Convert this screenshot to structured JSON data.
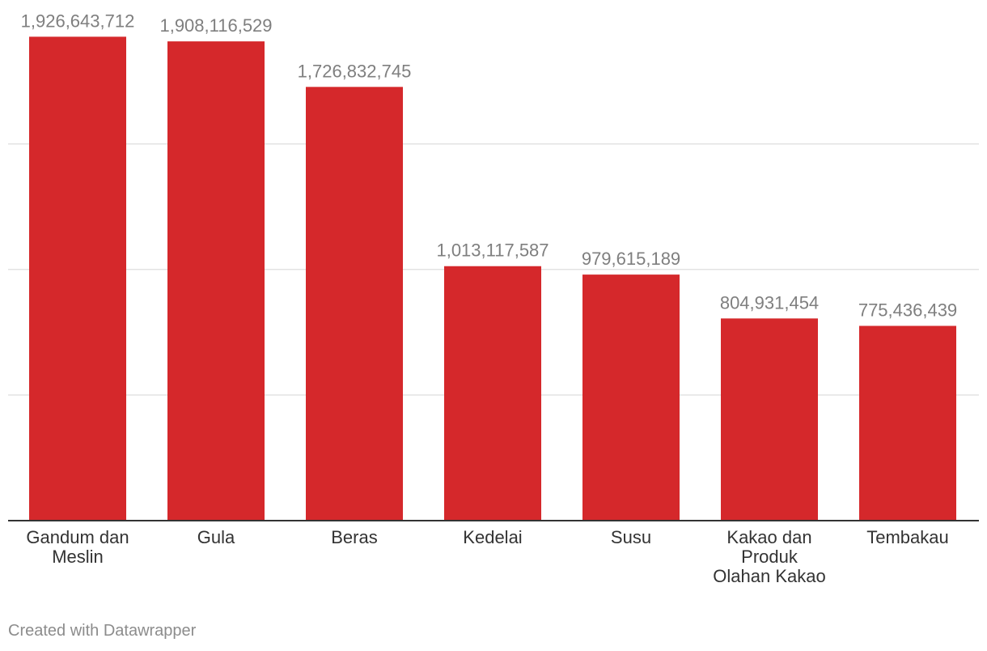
{
  "chart_data": {
    "type": "bar",
    "title": "",
    "xlabel": "",
    "ylabel": "",
    "categories": [
      [
        "Gandum dan",
        "Meslin"
      ],
      [
        "Gula"
      ],
      [
        "Beras"
      ],
      [
        "Kedelai"
      ],
      [
        "Susu"
      ],
      [
        "Kakao dan",
        "Produk",
        "Olahan Kakao"
      ],
      [
        "Tembakau"
      ]
    ],
    "values": [
      1926643712,
      1908116529,
      1726832745,
      1013117587,
      979615189,
      804931454,
      775436439
    ],
    "value_labels": [
      "1,926,643,712",
      "1,908,116,529",
      "1,726,832,745",
      "1,013,117,587",
      "979,615,189",
      "804,931,454",
      "775,436,439"
    ],
    "ylim": [
      0,
      2000000000
    ],
    "gridlines": [
      500000000,
      1000000000,
      1500000000
    ],
    "grid": true,
    "colors": {
      "bar": "#d5282b",
      "grid": "#e3e3e3",
      "axis": "#333333",
      "value_label": "#7f7f7f",
      "category_label": "#333333"
    }
  },
  "footer": {
    "credit": "Created with Datawrapper"
  }
}
